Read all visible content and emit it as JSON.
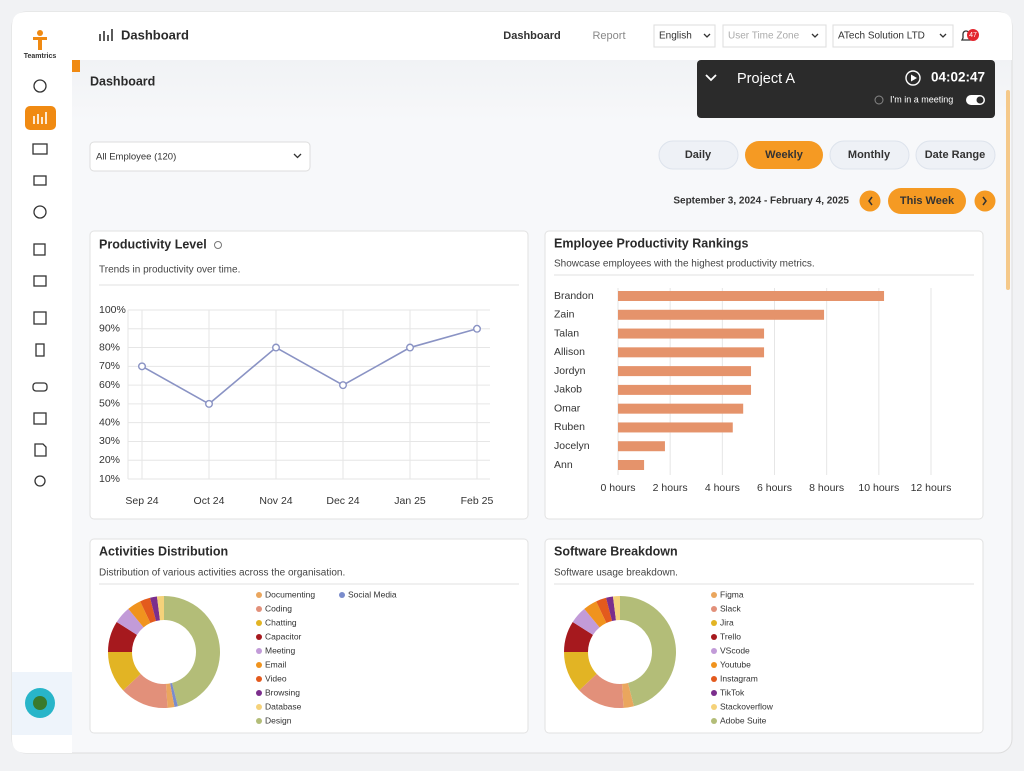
{
  "header": {
    "logo": "Teamtrics",
    "title": "Dashboard",
    "nav": [
      "Dashboard",
      "Report"
    ],
    "language": "English",
    "timezone": "User Time Zone",
    "company": "ATech Solution LTD",
    "notifications": 47
  },
  "page_title": "Dashboard",
  "timer": {
    "project": "Project A",
    "time": "04:02:47",
    "status": "I'm in a meeting"
  },
  "filters": {
    "employee": "All Employee (120)",
    "periods": [
      "Daily",
      "Weekly",
      "Monthly",
      "Date Range"
    ],
    "date_range": "September 3, 2024 - February 4, 2025",
    "current": "This Week"
  },
  "chart_data": [
    {
      "type": "line",
      "title": "Productivity Level",
      "subtitle": "Trends in productivity over time.",
      "categories": [
        "Sep 24",
        "Oct 24",
        "Nov 24",
        "Dec 24",
        "Jan 25",
        "Feb 25"
      ],
      "values": [
        70,
        50,
        80,
        60,
        80,
        90
      ],
      "color": "#8a93c4",
      "ylim": [
        10,
        100
      ],
      "yticks": [
        {
          "value": 100,
          "label": "100%"
        },
        {
          "value": 90,
          "label": "90%"
        },
        {
          "value": 80,
          "label": "80%"
        },
        {
          "value": 70,
          "label": "70%"
        },
        {
          "value": 60,
          "label": "60%"
        },
        {
          "value": 50,
          "label": "50%"
        },
        {
          "value": 40,
          "label": "40%"
        },
        {
          "value": 30,
          "label": "30%"
        },
        {
          "value": 20,
          "label": "20%"
        },
        {
          "value": 10,
          "label": "10%"
        }
      ],
      "grid": true
    },
    {
      "type": "hbar",
      "title": "Employee Productivity Rankings",
      "subtitle": "Showcase employees with the highest productivity metrics.",
      "categories": [
        "Brandon",
        "Zain",
        "Talan",
        "Allison",
        "Jordyn",
        "Jakob",
        "Omar",
        "Ruben",
        "Jocelyn",
        "Ann"
      ],
      "values": [
        10.2,
        7.9,
        5.6,
        5.6,
        5.1,
        5.1,
        4.8,
        4.4,
        1.8,
        1.0
      ],
      "color": "#e5936b",
      "xlim": [
        0,
        12
      ],
      "xticks": [
        {
          "value": 0,
          "label": "0 hours"
        },
        {
          "value": 2,
          "label": "2 hours"
        },
        {
          "value": 4,
          "label": "4 hours"
        },
        {
          "value": 6,
          "label": "6 hours"
        },
        {
          "value": 8,
          "label": "8 hours"
        },
        {
          "value": 10,
          "label": "10 hours"
        },
        {
          "value": 12,
          "label": "12 hours"
        }
      ],
      "grid": true
    },
    {
      "type": "donut",
      "title": "Activities Distribution",
      "subtitle": "Distribution of various activities across the organisation.",
      "categories": [
        "Documenting",
        "Coding",
        "Chatting",
        "Capacitor",
        "Meeting",
        "Email",
        "Video",
        "Browsing",
        "Database",
        "Design",
        "Social Media"
      ],
      "values": [
        2,
        14,
        12,
        9,
        5,
        4,
        3,
        2,
        2,
        46,
        1
      ],
      "colors": [
        "#eaa65e",
        "#e2907a",
        "#e2b424",
        "#a6191e",
        "#c29bd8",
        "#f0931e",
        "#e35a1d",
        "#7b2e8c",
        "#f5d27a",
        "#b3bd78",
        "#7a8ccc"
      ]
    },
    {
      "type": "donut",
      "title": "Software Breakdown",
      "subtitle": "Software usage breakdown.",
      "categories": [
        "Figma",
        "Slack",
        "Jira",
        "Trello",
        "VScode",
        "Youtube",
        "Instagram",
        "TikTok",
        "Stackoverflow",
        "Adobe Suite"
      ],
      "values": [
        3,
        14,
        12,
        9,
        5,
        4,
        3,
        2,
        2,
        46
      ],
      "colors": [
        "#eaa65e",
        "#e2907a",
        "#e2b424",
        "#a6191e",
        "#c29bd8",
        "#f0931e",
        "#e35a1d",
        "#7b2e8c",
        "#f5d27a",
        "#b3bd78"
      ]
    }
  ]
}
